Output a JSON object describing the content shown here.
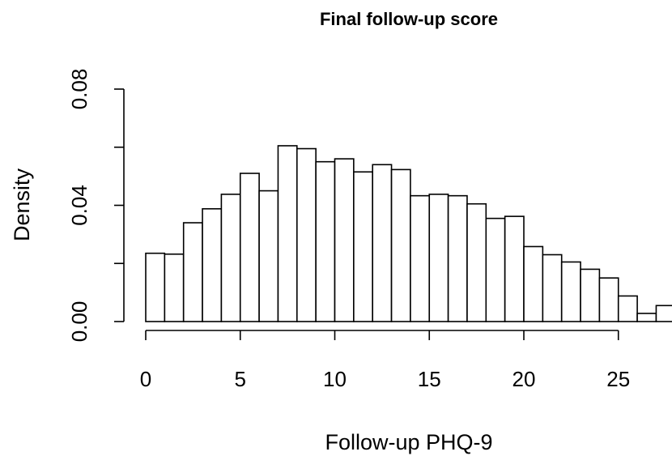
{
  "chart_data": {
    "type": "bar",
    "subtype": "histogram",
    "title": "Final follow-up score",
    "xlabel": "Follow-up PHQ-9",
    "ylabel": "Density",
    "bin_width": 1,
    "bins": [
      {
        "start": 0,
        "end": 1,
        "density": 0.0235
      },
      {
        "start": 1,
        "end": 2,
        "density": 0.0232
      },
      {
        "start": 2,
        "end": 3,
        "density": 0.034
      },
      {
        "start": 3,
        "end": 4,
        "density": 0.0388
      },
      {
        "start": 4,
        "end": 5,
        "density": 0.0438
      },
      {
        "start": 5,
        "end": 6,
        "density": 0.051
      },
      {
        "start": 6,
        "end": 7,
        "density": 0.045
      },
      {
        "start": 7,
        "end": 8,
        "density": 0.0605
      },
      {
        "start": 8,
        "end": 9,
        "density": 0.0595
      },
      {
        "start": 9,
        "end": 10,
        "density": 0.055
      },
      {
        "start": 10,
        "end": 11,
        "density": 0.056
      },
      {
        "start": 11,
        "end": 12,
        "density": 0.0515
      },
      {
        "start": 12,
        "end": 13,
        "density": 0.054
      },
      {
        "start": 13,
        "end": 14,
        "density": 0.0523
      },
      {
        "start": 14,
        "end": 15,
        "density": 0.0433
      },
      {
        "start": 15,
        "end": 16,
        "density": 0.0438
      },
      {
        "start": 16,
        "end": 17,
        "density": 0.0433
      },
      {
        "start": 17,
        "end": 18,
        "density": 0.0405
      },
      {
        "start": 18,
        "end": 19,
        "density": 0.0355
      },
      {
        "start": 19,
        "end": 20,
        "density": 0.0362
      },
      {
        "start": 20,
        "end": 21,
        "density": 0.0258
      },
      {
        "start": 21,
        "end": 22,
        "density": 0.023
      },
      {
        "start": 22,
        "end": 23,
        "density": 0.0205
      },
      {
        "start": 23,
        "end": 24,
        "density": 0.018
      },
      {
        "start": 24,
        "end": 25,
        "density": 0.015
      },
      {
        "start": 25,
        "end": 26,
        "density": 0.0088
      },
      {
        "start": 26,
        "end": 27,
        "density": 0.0028
      },
      {
        "start": 27,
        "end": 28,
        "density": 0.0055
      }
    ],
    "xlim": [
      0,
      28
    ],
    "ylim": [
      0,
      0.08
    ],
    "x_ticks": [
      0,
      5,
      10,
      15,
      20,
      25
    ],
    "x_tick_labels": [
      "0",
      "5",
      "10",
      "15",
      "20",
      "25"
    ],
    "y_ticks": [
      0,
      0.02,
      0.04,
      0.06,
      0.08
    ],
    "y_tick_labels": [
      "0.00",
      "",
      "0.04",
      "",
      "0.08"
    ],
    "grid": false,
    "legend": "none",
    "bar_fill": "#ffffff",
    "bar_stroke": "#000000"
  }
}
